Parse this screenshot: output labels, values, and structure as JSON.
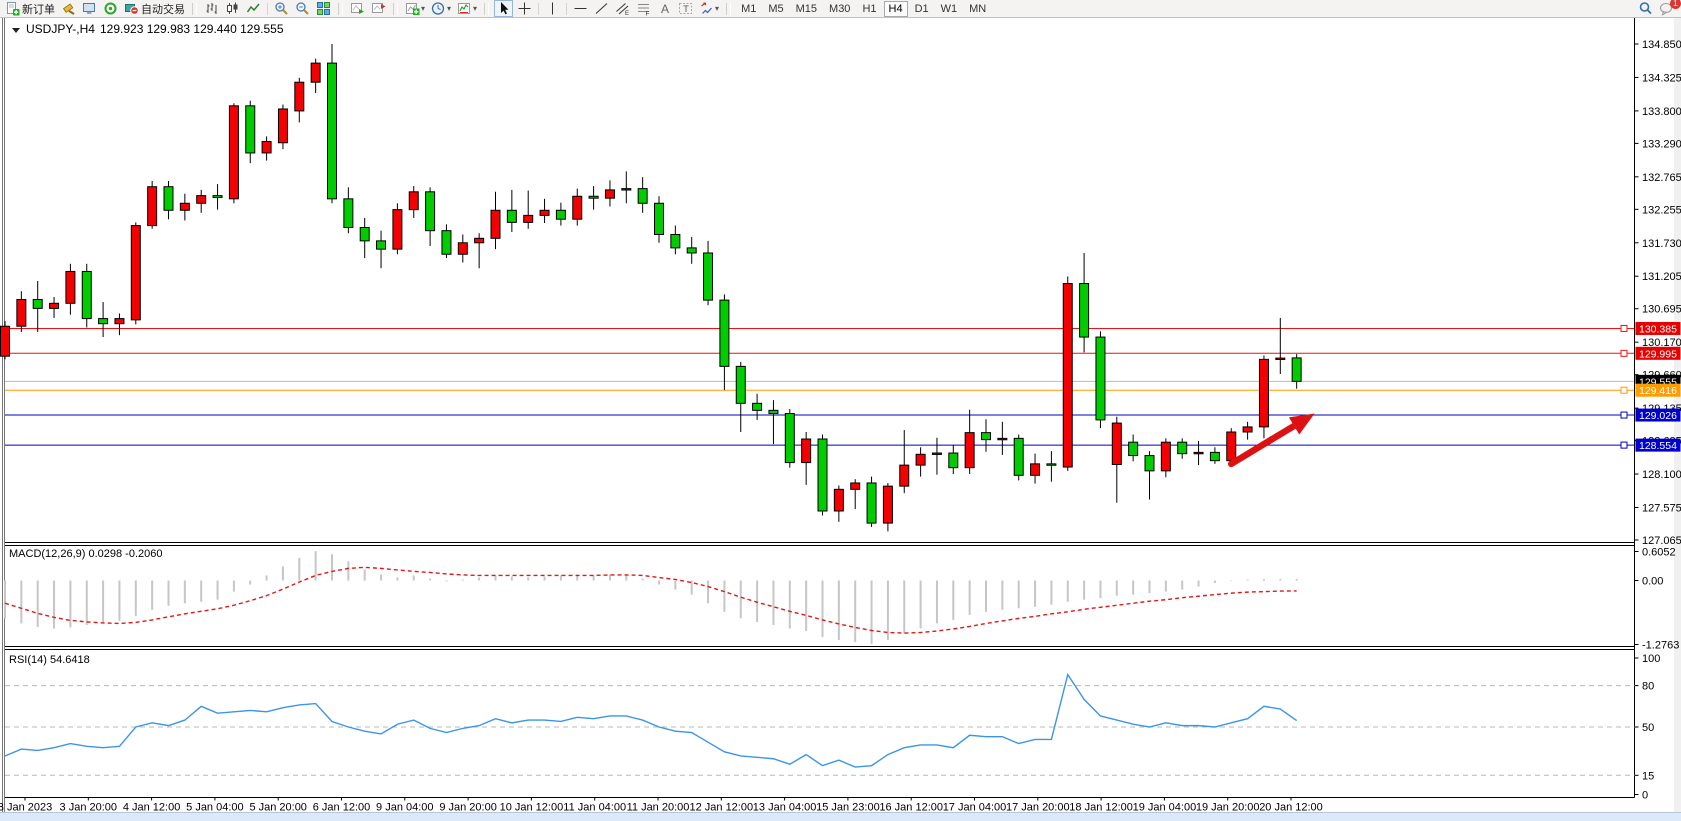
{
  "toolbar": {
    "new_order_label": "新订单",
    "autotrading_label": "自动交易",
    "timeframes": [
      "M1",
      "M5",
      "M15",
      "M30",
      "H1",
      "H4",
      "D1",
      "W1",
      "MN"
    ],
    "active_timeframe": "H4",
    "notification_badge": "1",
    "buttons": [
      {
        "t": "btn",
        "n": "new-order-button",
        "icon": "new-order",
        "label": "新订单"
      },
      {
        "t": "btn",
        "n": "metaeditor-button",
        "icon": "gavel"
      },
      {
        "t": "btn",
        "n": "terminal-button",
        "icon": "terminal"
      },
      {
        "t": "btn",
        "n": "community-button",
        "icon": "community"
      },
      {
        "t": "btn",
        "n": "autotrading-button",
        "icon": "autotrade",
        "label": "自动交易"
      },
      {
        "t": "grip"
      },
      {
        "t": "btn",
        "n": "bar-chart-button",
        "icon": "bars"
      },
      {
        "t": "btn",
        "n": "candle-chart-button",
        "icon": "candles"
      },
      {
        "t": "btn",
        "n": "line-chart-button",
        "icon": "linechart"
      },
      {
        "t": "sep"
      },
      {
        "t": "btn",
        "n": "zoom-in-button",
        "icon": "zoom-in"
      },
      {
        "t": "btn",
        "n": "zoom-out-button",
        "icon": "zoom-out"
      },
      {
        "t": "btn",
        "n": "tile-windows-button",
        "icon": "tile"
      },
      {
        "t": "grip"
      },
      {
        "t": "btn",
        "n": "auto-scroll-button",
        "icon": "autoscroll"
      },
      {
        "t": "btn",
        "n": "chart-shift-button",
        "icon": "chartshift"
      },
      {
        "t": "grip"
      },
      {
        "t": "btn",
        "n": "indicators-button",
        "icon": "indicator-add",
        "dd": true
      },
      {
        "t": "btn",
        "n": "periods-button",
        "icon": "clock",
        "dd": true
      },
      {
        "t": "btn",
        "n": "templates-button",
        "icon": "template",
        "dd": true
      },
      {
        "t": "grip"
      },
      {
        "t": "btn",
        "n": "cursor-button",
        "icon": "cursor",
        "active": true
      },
      {
        "t": "btn",
        "n": "crosshair-button",
        "icon": "crosshair"
      },
      {
        "t": "sep"
      },
      {
        "t": "btn",
        "n": "vertical-line-button",
        "icon": "vline"
      },
      {
        "t": "sep"
      },
      {
        "t": "btn",
        "n": "horizontal-line-button",
        "icon": "hline"
      },
      {
        "t": "btn",
        "n": "trendline-button",
        "icon": "tline"
      },
      {
        "t": "btn",
        "n": "equidistant-channel-button",
        "icon": "channel"
      },
      {
        "t": "btn",
        "n": "fibonacci-button",
        "icon": "fibo"
      },
      {
        "t": "btn",
        "n": "text-button",
        "icon": "textA"
      },
      {
        "t": "btn",
        "n": "label-button",
        "icon": "labelT"
      },
      {
        "t": "btn",
        "n": "arrows-button",
        "icon": "arrows",
        "dd": true
      },
      {
        "t": "grip"
      },
      {
        "t": "tf"
      }
    ]
  },
  "chart": {
    "symbol_title": "USDJPY-,H4",
    "ohlc_display": "129.923 129.983 129.440 129.555",
    "current_price": "129.555"
  },
  "time_axis": {
    "labels": [
      "3 Jan 2023",
      "3 Jan 20:00",
      "4 Jan 12:00",
      "5 Jan 04:00",
      "5 Jan 20:00",
      "6 Jan 12:00",
      "9 Jan 04:00",
      "9 Jan 20:00",
      "10 Jan 12:00",
      "11 Jan 04:00",
      "11 Jan 20:00",
      "12 Jan 12:00",
      "13 Jan 04:00",
      "15 Jan 23:00",
      "16 Jan 12:00",
      "17 Jan 04:00",
      "17 Jan 20:00",
      "18 Jan 12:00",
      "19 Jan 04:00",
      "19 Jan 20:00",
      "20 Jan 12:00"
    ]
  },
  "chart_data": [
    {
      "type": "candlestick",
      "symbol": "USDJPY-",
      "timeframe": "H4",
      "title": "USDJPY-,H4  129.923 129.983 129.440 129.555",
      "last_ohlc": {
        "open": 129.923,
        "high": 129.983,
        "low": 129.44,
        "close": 129.555
      },
      "up_color": "#f40000",
      "down_color": "#00cc00",
      "outline_color": "#000000",
      "ylim": [
        127.065,
        134.85
      ],
      "y_ticks": [
        "134.850",
        "134.325",
        "133.800",
        "133.290",
        "132.765",
        "132.255",
        "131.730",
        "131.205",
        "130.695",
        "130.170",
        "129.660",
        "129.135",
        "128.625",
        "128.100",
        "127.575",
        "127.065"
      ],
      "candles": [
        [
          129.95,
          130.5,
          129.9,
          130.42
        ],
        [
          130.42,
          130.97,
          130.33,
          130.84
        ],
        [
          130.84,
          131.13,
          130.33,
          130.7
        ],
        [
          130.7,
          130.88,
          130.55,
          130.78
        ],
        [
          130.78,
          131.4,
          130.6,
          131.28
        ],
        [
          131.28,
          131.4,
          130.4,
          130.54
        ],
        [
          130.54,
          130.8,
          130.25,
          130.46
        ],
        [
          130.46,
          130.62,
          130.28,
          130.54
        ],
        [
          130.52,
          132.05,
          130.45,
          132.0
        ],
        [
          132.0,
          132.7,
          131.95,
          132.61
        ],
        [
          132.61,
          132.7,
          132.1,
          132.24
        ],
        [
          132.24,
          132.5,
          132.08,
          132.35
        ],
        [
          132.35,
          132.56,
          132.2,
          132.47
        ],
        [
          132.47,
          132.65,
          132.25,
          132.44
        ],
        [
          132.42,
          133.92,
          132.35,
          133.88
        ],
        [
          133.88,
          133.96,
          132.98,
          133.14
        ],
        [
          133.14,
          133.4,
          133.02,
          133.32
        ],
        [
          133.3,
          133.9,
          133.2,
          133.83
        ],
        [
          133.8,
          134.32,
          133.62,
          134.25
        ],
        [
          134.25,
          134.62,
          134.08,
          134.55
        ],
        [
          134.55,
          134.85,
          132.35,
          132.42
        ],
        [
          132.42,
          132.6,
          131.88,
          131.97
        ],
        [
          131.97,
          132.12,
          131.49,
          131.76
        ],
        [
          131.76,
          131.92,
          131.33,
          131.63
        ],
        [
          131.63,
          132.35,
          131.55,
          132.25
        ],
        [
          132.25,
          132.62,
          132.12,
          132.53
        ],
        [
          132.53,
          132.6,
          131.68,
          131.92
        ],
        [
          131.92,
          132.02,
          131.49,
          131.55
        ],
        [
          131.55,
          131.86,
          131.42,
          131.73
        ],
        [
          131.73,
          131.88,
          131.33,
          131.8
        ],
        [
          131.8,
          132.53,
          131.63,
          132.24
        ],
        [
          132.24,
          132.56,
          131.9,
          132.05
        ],
        [
          132.05,
          132.55,
          131.95,
          132.16
        ],
        [
          132.16,
          132.42,
          132.04,
          132.24
        ],
        [
          132.24,
          132.36,
          132.0,
          132.1
        ],
        [
          132.1,
          132.58,
          132.0,
          132.46
        ],
        [
          132.46,
          132.62,
          132.25,
          132.43
        ],
        [
          132.43,
          132.71,
          132.3,
          132.56
        ],
        [
          132.56,
          132.85,
          132.35,
          132.58
        ],
        [
          132.58,
          132.76,
          132.2,
          132.35
        ],
        [
          132.35,
          132.46,
          131.73,
          131.86
        ],
        [
          131.86,
          132.0,
          131.55,
          131.65
        ],
        [
          131.65,
          131.82,
          131.4,
          131.57
        ],
        [
          131.57,
          131.76,
          130.75,
          130.83
        ],
        [
          130.83,
          130.92,
          129.42,
          129.79
        ],
        [
          129.79,
          129.86,
          128.76,
          129.21
        ],
        [
          129.21,
          129.36,
          128.95,
          129.1
        ],
        [
          129.1,
          129.26,
          128.57,
          129.05
        ],
        [
          129.05,
          129.12,
          128.2,
          128.28
        ],
        [
          128.28,
          128.76,
          127.93,
          128.65
        ],
        [
          128.65,
          128.72,
          127.45,
          127.52
        ],
        [
          127.52,
          127.92,
          127.35,
          127.86
        ],
        [
          127.86,
          128.02,
          127.55,
          127.96
        ],
        [
          127.96,
          128.06,
          127.27,
          127.33
        ],
        [
          127.33,
          127.96,
          127.2,
          127.91
        ],
        [
          127.91,
          128.79,
          127.8,
          128.24
        ],
        [
          128.24,
          128.52,
          128.06,
          128.41
        ],
        [
          128.41,
          128.67,
          128.09,
          128.43
        ],
        [
          128.43,
          128.56,
          128.1,
          128.2
        ],
        [
          128.2,
          129.11,
          128.1,
          128.75
        ],
        [
          128.75,
          128.96,
          128.45,
          128.64
        ],
        [
          128.64,
          128.92,
          128.4,
          128.66
        ],
        [
          128.66,
          128.72,
          128.0,
          128.08
        ],
        [
          128.08,
          128.42,
          127.95,
          128.26
        ],
        [
          128.26,
          128.46,
          127.98,
          128.25
        ],
        [
          128.21,
          131.2,
          128.15,
          131.09
        ],
        [
          131.09,
          131.57,
          130.01,
          130.25
        ],
        [
          130.25,
          130.34,
          128.82,
          128.95
        ],
        [
          128.25,
          129.0,
          127.65,
          128.9
        ],
        [
          128.6,
          128.72,
          128.3,
          128.39
        ],
        [
          128.39,
          128.46,
          127.7,
          128.15
        ],
        [
          128.15,
          128.66,
          128.05,
          128.6
        ],
        [
          128.6,
          128.66,
          128.34,
          128.42
        ],
        [
          128.42,
          128.62,
          128.24,
          128.44
        ],
        [
          128.44,
          128.52,
          128.26,
          128.31
        ],
        [
          128.31,
          128.82,
          128.24,
          128.76
        ],
        [
          128.76,
          128.92,
          128.64,
          128.84
        ],
        [
          128.84,
          129.96,
          128.66,
          129.9
        ],
        [
          129.9,
          130.55,
          129.67,
          129.92
        ],
        [
          129.923,
          129.983,
          129.44,
          129.555
        ]
      ],
      "hlines": [
        {
          "price": 130.385,
          "color": "#ee1111",
          "tag_bg": "#e60000",
          "label": "130.385",
          "handle": true
        },
        {
          "price": 129.995,
          "color": "#ee1111",
          "tag_bg": "#e60000",
          "label": "129.995",
          "handle": true
        },
        {
          "price": 129.555,
          "color": "#bbbbbb",
          "tag_bg": "#000000",
          "label": "129.555",
          "handle": false,
          "current": true
        },
        {
          "price": 129.416,
          "color": "#ff9c00",
          "tag_bg": "#ff9c00",
          "label": "129.416",
          "handle": true
        },
        {
          "price": 129.026,
          "color": "#0000bb",
          "tag_bg": "#0000cc",
          "label": "129.026",
          "handle": true
        },
        {
          "price": 128.554,
          "color": "#0000bb",
          "tag_bg": "#0000cc",
          "label": "128.554",
          "handle": true
        }
      ],
      "annotation_arrow": {
        "from_bar": 76.0,
        "from_price": 128.26,
        "to_bar": 81.1,
        "to_price": 129.05,
        "color": "#dd1111"
      }
    },
    {
      "type": "bar",
      "name": "MACD",
      "params": "12,26,9",
      "label": "MACD(12,26,9) 0.0298 -0.2060",
      "value_main": 0.0298,
      "value_signal": -0.206,
      "ylim": [
        -1.2763,
        0.6052
      ],
      "y_ticks": [
        {
          "v": 0.6052,
          "label": "0.6052"
        },
        {
          "v": 0,
          "label": "0.00"
        },
        {
          "v": -1.2763,
          "label": "-1.2763"
        }
      ],
      "histogram_color": "#c6c6c6",
      "signal_color": "#e01818",
      "histogram": [
        -0.75,
        -0.85,
        -0.92,
        -0.95,
        -0.93,
        -0.88,
        -0.83,
        -0.8,
        -0.7,
        -0.58,
        -0.5,
        -0.45,
        -0.42,
        -0.38,
        -0.22,
        -0.08,
        0.1,
        0.28,
        0.45,
        0.58,
        0.52,
        0.38,
        0.22,
        0.12,
        0.06,
        0.1,
        0.04,
        -0.02,
        0.02,
        0.06,
        0.1,
        0.08,
        0.06,
        0.08,
        0.1,
        0.12,
        0.1,
        0.12,
        0.1,
        0.04,
        -0.08,
        -0.18,
        -0.28,
        -0.45,
        -0.62,
        -0.75,
        -0.82,
        -0.88,
        -0.95,
        -1.0,
        -1.12,
        -1.18,
        -1.22,
        -1.26,
        -1.18,
        -1.05,
        -0.95,
        -0.85,
        -0.78,
        -0.68,
        -0.62,
        -0.58,
        -0.55,
        -0.52,
        -0.48,
        -0.42,
        -0.38,
        -0.35,
        -0.3,
        -0.28,
        -0.25,
        -0.22,
        -0.18,
        -0.12,
        -0.05,
        0.01,
        0.02,
        0.03,
        0.03,
        0.0298
      ],
      "signal": [
        -0.45,
        -0.55,
        -0.65,
        -0.73,
        -0.79,
        -0.82,
        -0.84,
        -0.85,
        -0.83,
        -0.78,
        -0.72,
        -0.66,
        -0.61,
        -0.56,
        -0.49,
        -0.4,
        -0.3,
        -0.17,
        -0.03,
        0.1,
        0.18,
        0.24,
        0.26,
        0.24,
        0.21,
        0.18,
        0.16,
        0.13,
        0.11,
        0.1,
        0.1,
        0.1,
        0.1,
        0.1,
        0.1,
        0.1,
        0.1,
        0.11,
        0.11,
        0.1,
        0.06,
        0.02,
        -0.04,
        -0.12,
        -0.22,
        -0.33,
        -0.43,
        -0.52,
        -0.61,
        -0.69,
        -0.78,
        -0.86,
        -0.93,
        -0.99,
        -1.03,
        -1.04,
        -1.03,
        -1.0,
        -0.96,
        -0.91,
        -0.85,
        -0.8,
        -0.75,
        -0.71,
        -0.66,
        -0.62,
        -0.57,
        -0.53,
        -0.49,
        -0.45,
        -0.41,
        -0.38,
        -0.34,
        -0.31,
        -0.28,
        -0.25,
        -0.23,
        -0.22,
        -0.21,
        -0.206
      ]
    },
    {
      "type": "line",
      "name": "RSI",
      "period": 14,
      "label": "RSI(14) 54.6418",
      "value": 54.6418,
      "ylim": [
        0,
        100
      ],
      "levels": [
        80,
        50,
        15
      ],
      "y_ticks": [
        {
          "v": 100,
          "label": "100"
        },
        {
          "v": 80,
          "label": "80"
        },
        {
          "v": 50,
          "label": "50"
        },
        {
          "v": 15,
          "label": "15"
        },
        {
          "v": 0,
          "label": "0"
        }
      ],
      "line_color": "#3b95e6",
      "values": [
        29,
        34,
        33,
        35,
        38,
        36,
        35,
        36,
        50,
        53,
        51,
        55,
        65,
        60,
        61,
        62,
        61,
        64,
        66,
        67,
        54,
        50,
        47,
        45,
        52,
        55,
        49,
        46,
        49,
        51,
        56,
        53,
        55,
        55,
        54,
        57,
        56,
        58,
        58,
        55,
        50,
        47,
        46,
        39,
        32,
        29,
        28,
        27,
        23,
        30,
        22,
        26,
        21,
        22,
        30,
        35,
        37,
        37,
        35,
        44,
        43,
        43,
        38,
        41,
        41,
        88,
        70,
        58,
        55,
        52,
        50,
        53,
        51,
        51,
        50,
        53,
        56,
        65,
        63,
        54.6418
      ]
    }
  ]
}
